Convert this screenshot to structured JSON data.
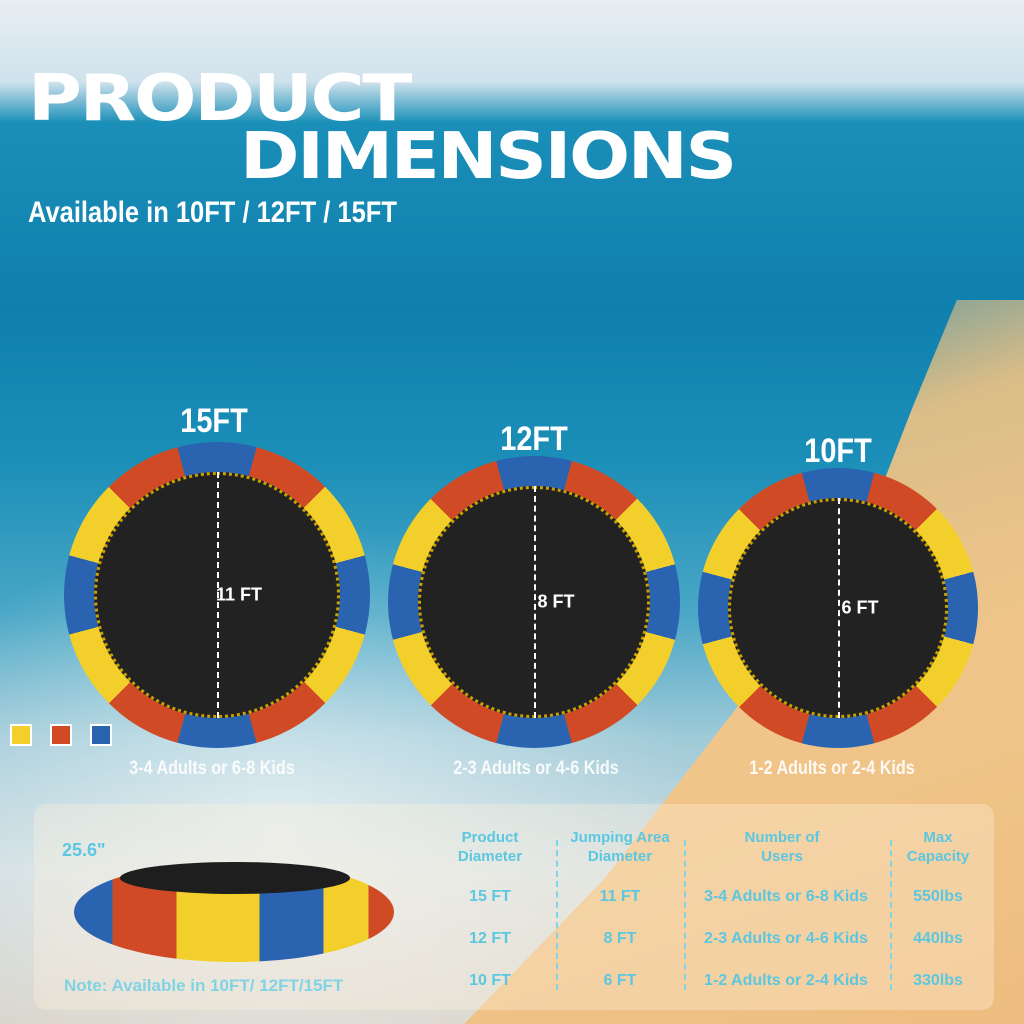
{
  "title_line1": "PRODUCT",
  "title_line2": "DIMENSIONS",
  "subtitle": "Available in 10FT / 12FT / 15FT",
  "colors": {
    "yellow": "#f3cf2c",
    "red": "#d04a25",
    "blue": "#2a64b0",
    "table_text": "#5cc7e0"
  },
  "trampolines": [
    {
      "size": "15FT",
      "jump": "11 FT",
      "users": "3-4 Adults or 6-8 Kids"
    },
    {
      "size": "12FT",
      "jump": "8 FT",
      "users": "2-3 Adults or 4-6 Kids"
    },
    {
      "size": "10FT",
      "jump": "6 FT",
      "users": "1-2 Adults or 2-4 Kids"
    }
  ],
  "height_label": "25.6\"",
  "note": "Note: Available in 10FT/ 12FT/15FT",
  "table": {
    "headers": [
      "Product Diameter",
      "Jumping Area Diameter",
      "Number of Users",
      "Max Capacity"
    ],
    "rows": [
      [
        "15 FT",
        "11 FT",
        "3-4 Adults or 6-8 Kids",
        "550lbs"
      ],
      [
        "12 FT",
        "8 FT",
        "2-3 Adults or 4-6 Kids",
        "440lbs"
      ],
      [
        "10 FT",
        "6 FT",
        "1-2 Adults or 2-4 Kids",
        "330lbs"
      ]
    ]
  }
}
